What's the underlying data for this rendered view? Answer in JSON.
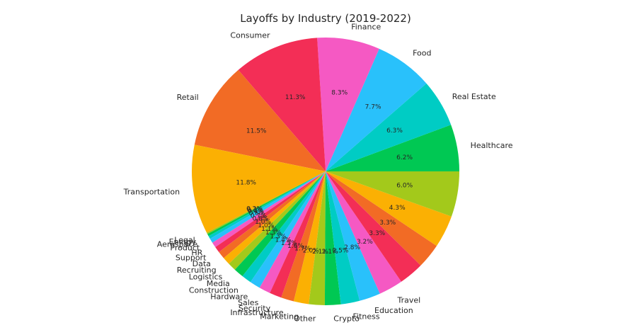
{
  "chart_data": {
    "type": "pie",
    "title": "Layoffs by Industry (2019-2022)",
    "start_angle_deg": 0,
    "direction": "counterclockwise",
    "slices": [
      {
        "label": "Healthcare",
        "value": 6.2,
        "pct_label": "6.2%",
        "color": "#00c853"
      },
      {
        "label": "Real Estate",
        "value": 6.3,
        "pct_label": "6.3%",
        "color": "#00ccc4"
      },
      {
        "label": "Food",
        "value": 7.7,
        "pct_label": "7.7%",
        "color": "#29c1fb"
      },
      {
        "label": "Finance",
        "value": 8.3,
        "pct_label": "8.3%",
        "color": "#f559c3"
      },
      {
        "label": "Consumer",
        "value": 11.3,
        "pct_label": "11.3%",
        "color": "#f32e56"
      },
      {
        "label": "Retail",
        "value": 11.5,
        "pct_label": "11.5%",
        "color": "#f26b25"
      },
      {
        "label": "Transportation",
        "value": 11.8,
        "pct_label": "11.8%",
        "color": "#fbb003"
      },
      {
        "label": "Legal",
        "value": 0.2,
        "pct_label": "0.2%",
        "color": "#a3c91b"
      },
      {
        "label": "Energy",
        "value": 0.3,
        "pct_label": "0.3%",
        "color": "#00c853"
      },
      {
        "label": "Aerospace",
        "value": 0.4,
        "pct_label": "0.4%",
        "color": "#00ccc4"
      },
      {
        "label": "Product",
        "value": 0.6,
        "pct_label": "0.6%",
        "color": "#29c1fb"
      },
      {
        "label": "HR",
        "value": 0.7,
        "pct_label": "0.7%",
        "color": "#f559c3"
      },
      {
        "label": "Support",
        "value": 0.8,
        "pct_label": "0.8%",
        "color": "#f32e56"
      },
      {
        "label": "Data",
        "value": 1.0,
        "pct_label": "1.0%",
        "color": "#f26b25"
      },
      {
        "label": "Recruiting",
        "value": 1.0,
        "pct_label": "1.0%",
        "color": "#fbb003"
      },
      {
        "label": "Logistics",
        "value": 1.1,
        "pct_label": "1.1%",
        "color": "#a3c91b"
      },
      {
        "label": "Media",
        "value": 1.3,
        "pct_label": "1.3%",
        "color": "#00c853"
      },
      {
        "label": "Construction",
        "value": 1.3,
        "pct_label": "1.3%",
        "color": "#00ccc4"
      },
      {
        "label": "Hardware",
        "value": 1.4,
        "pct_label": "1.4%",
        "color": "#29c1fb"
      },
      {
        "label": "Sales",
        "value": 1.5,
        "pct_label": "1.5%",
        "color": "#f559c3"
      },
      {
        "label": "Security",
        "value": 1.6,
        "pct_label": "1.6%",
        "color": "#f32e56"
      },
      {
        "label": "Infrastructure",
        "value": 1.7,
        "pct_label": "1.7%",
        "color": "#f26b25"
      },
      {
        "label": "Marketing",
        "value": 2.0,
        "pct_label": "2.0%",
        "color": "#fbb003"
      },
      {
        "label": "Other",
        "value": 2.1,
        "pct_label": "2.1%",
        "color": "#a3c91b"
      },
      {
        "label": "Crypto",
        "value": 2.1,
        "pct_label": "2.1%",
        "color": "#00c853"
      },
      {
        "label": "Fitness",
        "value": 2.5,
        "pct_label": "2.5%",
        "color": "#00ccc4"
      },
      {
        "label": "Education",
        "value": 2.8,
        "pct_label": "2.8%",
        "color": "#29c1fb"
      },
      {
        "label": "Travel",
        "value": 3.2,
        "pct_label": "3.2%",
        "color": "#f559c3"
      },
      {
        "label": "",
        "value": 3.3,
        "pct_label": "3.3%",
        "color": "#f32e56"
      },
      {
        "label": "",
        "value": 3.3,
        "pct_label": "3.3%",
        "color": "#f26b25"
      },
      {
        "label": "",
        "value": 4.3,
        "pct_label": "4.3%",
        "color": "#fbb003"
      },
      {
        "label": "",
        "value": 6.0,
        "pct_label": "6.0%",
        "color": "#a3c91b"
      }
    ]
  }
}
